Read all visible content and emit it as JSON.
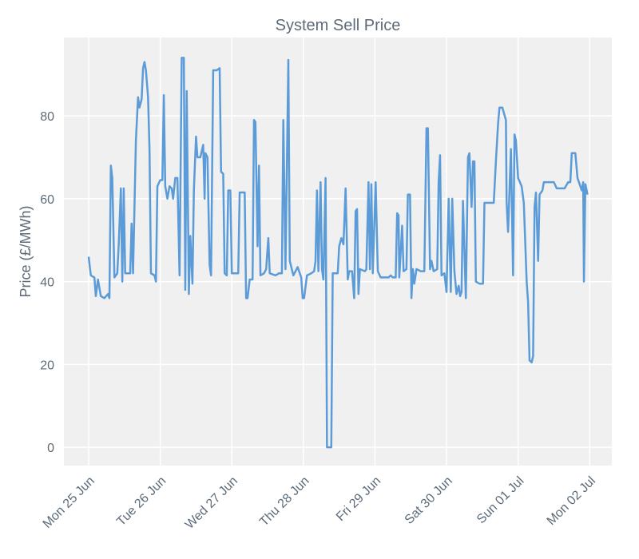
{
  "chart_data": {
    "type": "line",
    "title": "System Sell Price",
    "y_label": "Price (£/MWh)",
    "xlim": [
      -0.346,
      7.31
    ],
    "ylim": [
      -4.4,
      98.9
    ],
    "grid": true,
    "xticks": [
      {
        "value": 0,
        "label": "Mon 25 Jun"
      },
      {
        "value": 1,
        "label": "Tue 26 Jun"
      },
      {
        "value": 2,
        "label": "Wed 27 Jun"
      },
      {
        "value": 3,
        "label": "Thu 28 Jun"
      },
      {
        "value": 4,
        "label": "Fri 29 Jun"
      },
      {
        "value": 5,
        "label": "Sat 30 Jun"
      },
      {
        "value": 6,
        "label": "Sun 01 Jul"
      },
      {
        "value": 7,
        "label": "Mon 02 Jul"
      }
    ],
    "yticks": [
      0,
      20,
      40,
      60,
      80
    ],
    "x": [
      0,
      0.03,
      0.08,
      0.1,
      0.13,
      0.17,
      0.22,
      0.27,
      0.29,
      0.31,
      0.33,
      0.36,
      0.4,
      0.42,
      0.45,
      0.47,
      0.49,
      0.51,
      0.58,
      0.6,
      0.62,
      0.66,
      0.69,
      0.71,
      0.74,
      0.76,
      0.78,
      0.8,
      0.83,
      0.85,
      0.87,
      0.92,
      0.94,
      0.96,
      1.0,
      1.03,
      1.05,
      1.07,
      1.1,
      1.13,
      1.16,
      1.18,
      1.21,
      1.24,
      1.27,
      1.3,
      1.33,
      1.35,
      1.37,
      1.4,
      1.42,
      1.45,
      1.47,
      1.5,
      1.52,
      1.56,
      1.6,
      1.62,
      1.63,
      1.66,
      1.69,
      1.71,
      1.74,
      1.79,
      1.83,
      1.85,
      1.88,
      1.9,
      1.93,
      1.95,
      1.98,
      2.0,
      2.09,
      2.11,
      2.18,
      2.2,
      2.22,
      2.25,
      2.29,
      2.31,
      2.33,
      2.36,
      2.38,
      2.4,
      2.45,
      2.48,
      2.51,
      2.53,
      2.61,
      2.66,
      2.7,
      2.72,
      2.75,
      2.79,
      2.81,
      2.86,
      2.89,
      2.92,
      2.95,
      2.97,
      2.99,
      3.01,
      3.05,
      3.11,
      3.15,
      3.17,
      3.19,
      3.21,
      3.24,
      3.26,
      3.28,
      3.31,
      3.33,
      3.39,
      3.41,
      3.48,
      3.5,
      3.53,
      3.56,
      3.59,
      3.62,
      3.64,
      3.68,
      3.71,
      3.73,
      3.75,
      3.77,
      3.79,
      3.86,
      3.88,
      3.91,
      3.93,
      3.95,
      3.97,
      4.01,
      4.04,
      4.08,
      4.19,
      4.22,
      4.25,
      4.29,
      4.31,
      4.33,
      4.34,
      4.38,
      4.4,
      4.44,
      4.46,
      4.49,
      4.51,
      4.53,
      4.55,
      4.58,
      4.64,
      4.69,
      4.72,
      4.74,
      4.77,
      4.79,
      4.82,
      4.87,
      4.89,
      4.91,
      4.93,
      4.97,
      5.0,
      5.03,
      5.06,
      5.08,
      5.11,
      5.14,
      5.17,
      5.19,
      5.21,
      5.23,
      5.27,
      5.3,
      5.32,
      5.35,
      5.37,
      5.39,
      5.41,
      5.46,
      5.51,
      5.53,
      5.63,
      5.66,
      5.69,
      5.72,
      5.74,
      5.78,
      5.83,
      5.84,
      5.86,
      5.9,
      5.93,
      5.95,
      5.97,
      6.0,
      6.05,
      6.08,
      6.12,
      6.14,
      6.16,
      6.19,
      6.21,
      6.23,
      6.25,
      6.28,
      6.3,
      6.34,
      6.36,
      6.45,
      6.5,
      6.54,
      6.65,
      6.7,
      6.73,
      6.75,
      6.8,
      6.83,
      6.85,
      6.89,
      6.91,
      6.92,
      6.94,
      6.97
    ],
    "series": [
      {
        "name": "System Sell Price",
        "color": "#5b9bd8",
        "values": [
          46,
          41.5,
          41,
          36.5,
          40.5,
          36.5,
          36,
          37,
          36,
          68,
          65,
          41,
          42,
          49,
          62.5,
          40,
          62.5,
          42,
          42,
          54,
          42,
          74,
          84.5,
          82,
          84,
          91.5,
          93,
          91,
          84.5,
          72,
          42,
          41.5,
          40,
          63,
          64.5,
          64.5,
          85,
          63,
          60,
          63,
          62.5,
          60,
          65,
          65,
          41.5,
          94,
          94,
          38,
          86,
          37,
          51,
          39.5,
          62,
          75,
          70,
          70,
          73,
          60,
          71,
          70,
          44,
          41.5,
          91,
          91,
          91.5,
          66.5,
          66,
          42,
          41.5,
          62,
          62,
          42,
          42,
          61.5,
          61.5,
          36,
          36,
          40.5,
          40.5,
          79,
          78.5,
          48.5,
          68,
          41.5,
          42,
          43,
          50.5,
          42,
          41.5,
          42,
          42,
          79,
          43,
          93.5,
          45,
          41.5,
          42.5,
          43.5,
          42,
          41,
          36,
          36,
          41.5,
          42,
          42.5,
          45,
          62,
          42.5,
          64,
          43,
          40.5,
          65,
          0,
          0,
          42,
          42,
          48.5,
          50.5,
          49,
          62.5,
          40.5,
          42.5,
          42.5,
          36,
          57,
          57.5,
          37,
          43,
          42.5,
          43,
          64,
          43,
          63.5,
          42,
          64,
          42.5,
          41,
          41,
          41.5,
          41,
          41,
          56.5,
          56,
          41,
          53.5,
          42.5,
          43,
          61,
          61,
          36,
          43,
          39.5,
          43,
          42.5,
          42.5,
          77,
          77,
          43,
          45,
          42.5,
          43,
          64,
          70.5,
          41.5,
          42,
          37.5,
          60,
          37.5,
          60,
          42.5,
          37,
          39,
          36.5,
          37.5,
          59.5,
          36,
          70,
          71,
          58,
          69,
          69,
          40,
          39.5,
          39.5,
          59,
          59,
          59,
          69,
          78,
          82,
          82,
          79,
          59,
          52,
          72,
          41.5,
          75.5,
          74,
          65,
          63,
          59,
          40,
          35,
          21,
          20.5,
          22,
          58,
          61.5,
          45,
          61,
          62,
          64,
          64,
          64,
          62.5,
          62.5,
          64,
          64,
          71,
          71,
          65,
          64,
          62,
          64,
          40,
          63.5,
          61
        ]
      }
    ]
  }
}
